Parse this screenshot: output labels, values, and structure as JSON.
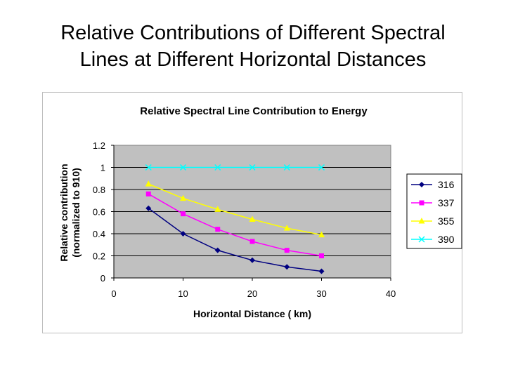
{
  "slide": {
    "title_line1": "Relative Contributions of Different Spectral",
    "title_line2": "Lines at Different Horizontal Distances"
  },
  "chart_data": {
    "type": "line",
    "title": "Relative Spectral Line Contribution to Energy",
    "xlabel": "Horizontal Distance ( km)",
    "ylabel_line1": "Relative contribution",
    "ylabel_line2": "(normalized to 910)",
    "xlim": [
      0,
      40
    ],
    "ylim": [
      0,
      1.2
    ],
    "x_ticks": [
      "0",
      "10",
      "20",
      "30",
      "40"
    ],
    "y_ticks": [
      "0",
      "0.2",
      "0.4",
      "0.6",
      "0.8",
      "1",
      "1.2"
    ],
    "grid": "horizontal",
    "legend_position": "right",
    "plot_background": "#c0c0c0",
    "x": [
      5,
      10,
      15,
      20,
      25,
      30
    ],
    "series": [
      {
        "name": "316",
        "color": "#000080",
        "marker": "diamond",
        "values": [
          0.63,
          0.4,
          0.25,
          0.16,
          0.1,
          0.06
        ]
      },
      {
        "name": "337",
        "color": "#ff00ff",
        "marker": "square",
        "values": [
          0.76,
          0.58,
          0.44,
          0.33,
          0.25,
          0.2
        ]
      },
      {
        "name": "355",
        "color": "#ffff00",
        "marker": "triangle",
        "values": [
          0.85,
          0.72,
          0.62,
          0.53,
          0.45,
          0.39
        ]
      },
      {
        "name": "390",
        "color": "#00ffff",
        "marker": "x",
        "values": [
          1.0,
          1.0,
          1.0,
          1.0,
          1.0,
          1.0
        ]
      }
    ]
  }
}
